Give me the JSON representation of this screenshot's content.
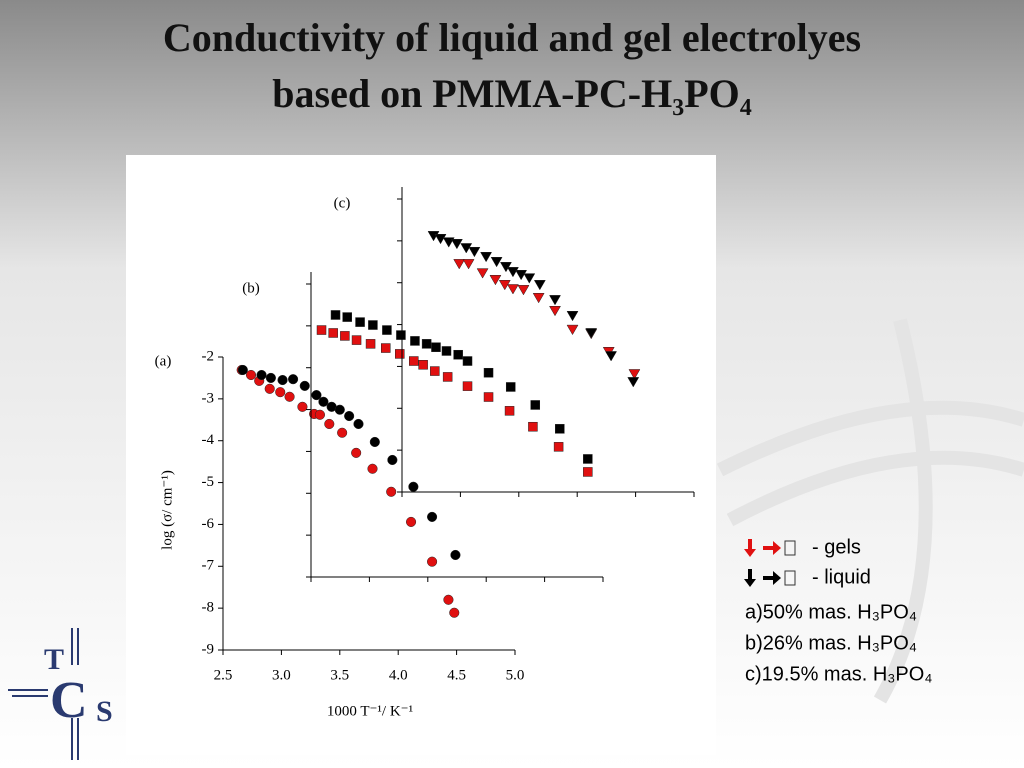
{
  "chart_data": {
    "type": "scatter",
    "title": [
      "Conductivity of liquid and gel electrolyes",
      "based on PMMA-PC-H₃PO₄"
    ],
    "x_label": "1000 T⁻¹/ K⁻¹",
    "y_label": "log (σ/ cm⁻¹)",
    "xlim": [
      2.5,
      5.0
    ],
    "ylim": [
      -9,
      -2
    ],
    "xticks": [
      2.5,
      {
        "value": 3.0,
        "label": "3.0"
      },
      3.5,
      {
        "value": 4.0,
        "label": "4.0"
      },
      4.5,
      {
        "value": 5.0,
        "label": "5.0"
      }
    ],
    "yticks": [
      -2,
      -3,
      -4,
      -5,
      -6,
      -7,
      -8,
      -9
    ],
    "panels": [
      {
        "label": "(a)",
        "marker": "circle",
        "series": [
          {
            "color": "#e01010",
            "x": [
              2.66,
              2.74,
              2.81,
              2.9,
              2.99,
              3.07,
              3.18,
              3.28,
              3.33,
              3.41,
              3.52,
              3.64,
              3.78,
              3.94,
              4.11,
              4.29,
              4.43,
              4.48
            ],
            "values": [
              -2.31,
              -2.43,
              -2.57,
              -2.76,
              -2.84,
              -2.95,
              -3.19,
              -3.36,
              -3.38,
              -3.6,
              -3.81,
              -4.29,
              -4.67,
              -5.22,
              -5.94,
              -6.89,
              -7.8,
              -8.11
            ]
          },
          {
            "color": "#000000",
            "x": [
              2.67,
              2.83,
              2.91,
              3.01,
              3.1,
              3.2,
              3.3,
              3.36,
              3.43,
              3.5,
              3.58,
              3.66,
              3.8,
              3.95,
              4.13,
              4.29,
              4.49
            ],
            "values": [
              -2.31,
              -2.43,
              -2.5,
              -2.55,
              -2.53,
              -2.69,
              -2.91,
              -3.07,
              -3.19,
              -3.26,
              -3.41,
              -3.6,
              -4.03,
              -4.46,
              -5.1,
              -5.82,
              -6.73
            ]
          }
        ]
      },
      {
        "label": "(b)",
        "marker": "square",
        "series": [
          {
            "color": "#e01010",
            "x": [
              2.59,
              2.69,
              2.79,
              2.89,
              3.01,
              3.14,
              3.26,
              3.38,
              3.46,
              3.56,
              3.67,
              3.84,
              4.02,
              4.2,
              4.4,
              4.62,
              4.87
            ],
            "values": [
              -3.1,
              -3.17,
              -3.24,
              -3.34,
              -3.43,
              -3.53,
              -3.67,
              -3.84,
              -3.93,
              -4.08,
              -4.22,
              -4.44,
              -4.7,
              -5.03,
              -5.41,
              -5.89,
              -6.49
            ]
          },
          {
            "color": "#000000",
            "x": [
              2.71,
              2.81,
              2.92,
              3.03,
              3.15,
              3.27,
              3.39,
              3.49,
              3.57,
              3.66,
              3.76,
              3.84,
              4.02,
              4.21,
              4.42,
              4.63,
              4.87
            ],
            "values": [
              -2.74,
              -2.79,
              -2.91,
              -2.98,
              -3.1,
              -3.22,
              -3.36,
              -3.43,
              -3.51,
              -3.6,
              -3.69,
              -3.84,
              -4.12,
              -4.46,
              -4.89,
              -5.46,
              -6.18
            ]
          }
        ]
      },
      {
        "label": "(c)",
        "marker": "triangle",
        "series": [
          {
            "color": "#e01010",
            "x": [
              2.99,
              3.07,
              3.19,
              3.3,
              3.38,
              3.45,
              3.54,
              3.67,
              3.81,
              3.96,
              4.12,
              4.27,
              4.49
            ],
            "values": [
              -3.55,
              -3.55,
              -3.77,
              -3.93,
              -4.05,
              -4.15,
              -4.17,
              -4.36,
              -4.67,
              -5.12,
              -5.22,
              -5.65,
              -6.18
            ]
          },
          {
            "color": "#000000",
            "x": [
              2.77,
              2.83,
              2.9,
              2.97,
              3.05,
              3.12,
              3.22,
              3.31,
              3.39,
              3.45,
              3.52,
              3.59,
              3.68,
              3.81,
              3.96,
              4.12,
              4.29,
              4.48
            ],
            "values": [
              -2.88,
              -2.95,
              -3.03,
              -3.07,
              -3.17,
              -3.26,
              -3.38,
              -3.5,
              -3.62,
              -3.74,
              -3.81,
              -3.89,
              -4.05,
              -4.41,
              -4.79,
              -5.2,
              -5.75,
              -6.37
            ]
          }
        ]
      }
    ],
    "legend": [
      {
        "text": "- gels",
        "color": "#e01010"
      },
      {
        "text": "- liquid",
        "color": "#000000"
      }
    ],
    "notes": [
      "a)50% mas. H₃PO₄",
      "b)26% mas. H₃PO₄",
      "c)19.5% mas. H₃PO₄"
    ]
  },
  "logo": [
    "T",
    "C",
    "S"
  ]
}
